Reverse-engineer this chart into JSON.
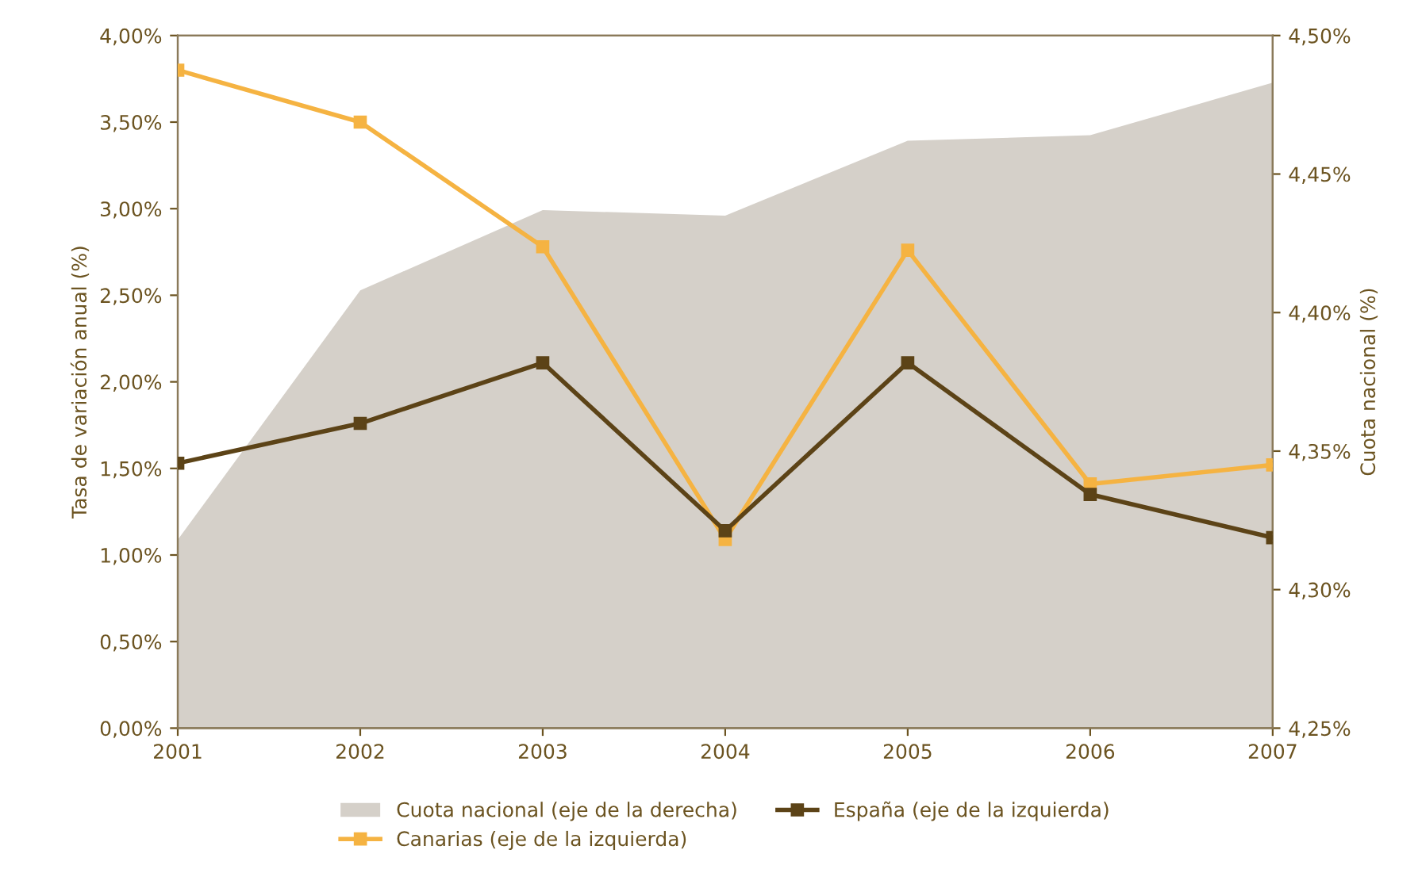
{
  "chart_data": {
    "type": "line",
    "x": [
      2001,
      2002,
      2003,
      2004,
      2005,
      2006,
      2007
    ],
    "xlim": [
      2001,
      2007
    ],
    "xticks": [
      2001,
      2002,
      2003,
      2004,
      2005,
      2006,
      2007
    ],
    "ylim": [
      0,
      4
    ],
    "yticks": [
      {
        "value": 0,
        "label": "0,00%"
      },
      {
        "value": 0.5,
        "label": "0,50%"
      },
      {
        "value": 1,
        "label": "1,00%"
      },
      {
        "value": 1.5,
        "label": "1,50%"
      },
      {
        "value": 2,
        "label": "2,00%"
      },
      {
        "value": 2.5,
        "label": "2,50%"
      },
      {
        "value": 3,
        "label": "3,00%"
      },
      {
        "value": 3.5,
        "label": "3,50%"
      },
      {
        "value": 4,
        "label": "4,00%"
      }
    ],
    "y2lim": [
      4.25,
      4.5
    ],
    "y2ticks": [
      {
        "value": 4.25,
        "label": "4,25%"
      },
      {
        "value": 4.3,
        "label": "4,30%"
      },
      {
        "value": 4.35,
        "label": "4,35%"
      },
      {
        "value": 4.4,
        "label": "4,40%"
      },
      {
        "value": 4.45,
        "label": "4,45%"
      },
      {
        "value": 4.5,
        "label": "4,50%"
      }
    ],
    "ylabel": "Tasa de variación anual (%)",
    "y2label": "Cuota nacional (%)",
    "series": [
      {
        "name": "Cuota nacional (eje de la derecha)",
        "type": "area",
        "axis": "y2",
        "color": "#d5d0c9",
        "values": [
          4.318,
          4.408,
          4.437,
          4.435,
          4.462,
          4.464,
          4.483
        ]
      },
      {
        "name": "España (eje de la izquierda)",
        "marker": "square",
        "color": "#5c4317",
        "values": [
          1.53,
          1.76,
          2.11,
          1.14,
          2.11,
          1.35,
          1.1
        ]
      },
      {
        "name": "Canarias (eje de la izquierda)",
        "marker": "square",
        "color": "#f5b342",
        "values": [
          3.8,
          3.5,
          2.78,
          1.09,
          2.76,
          1.41,
          1.52
        ]
      }
    ],
    "legend": "bottom",
    "grid": false
  }
}
